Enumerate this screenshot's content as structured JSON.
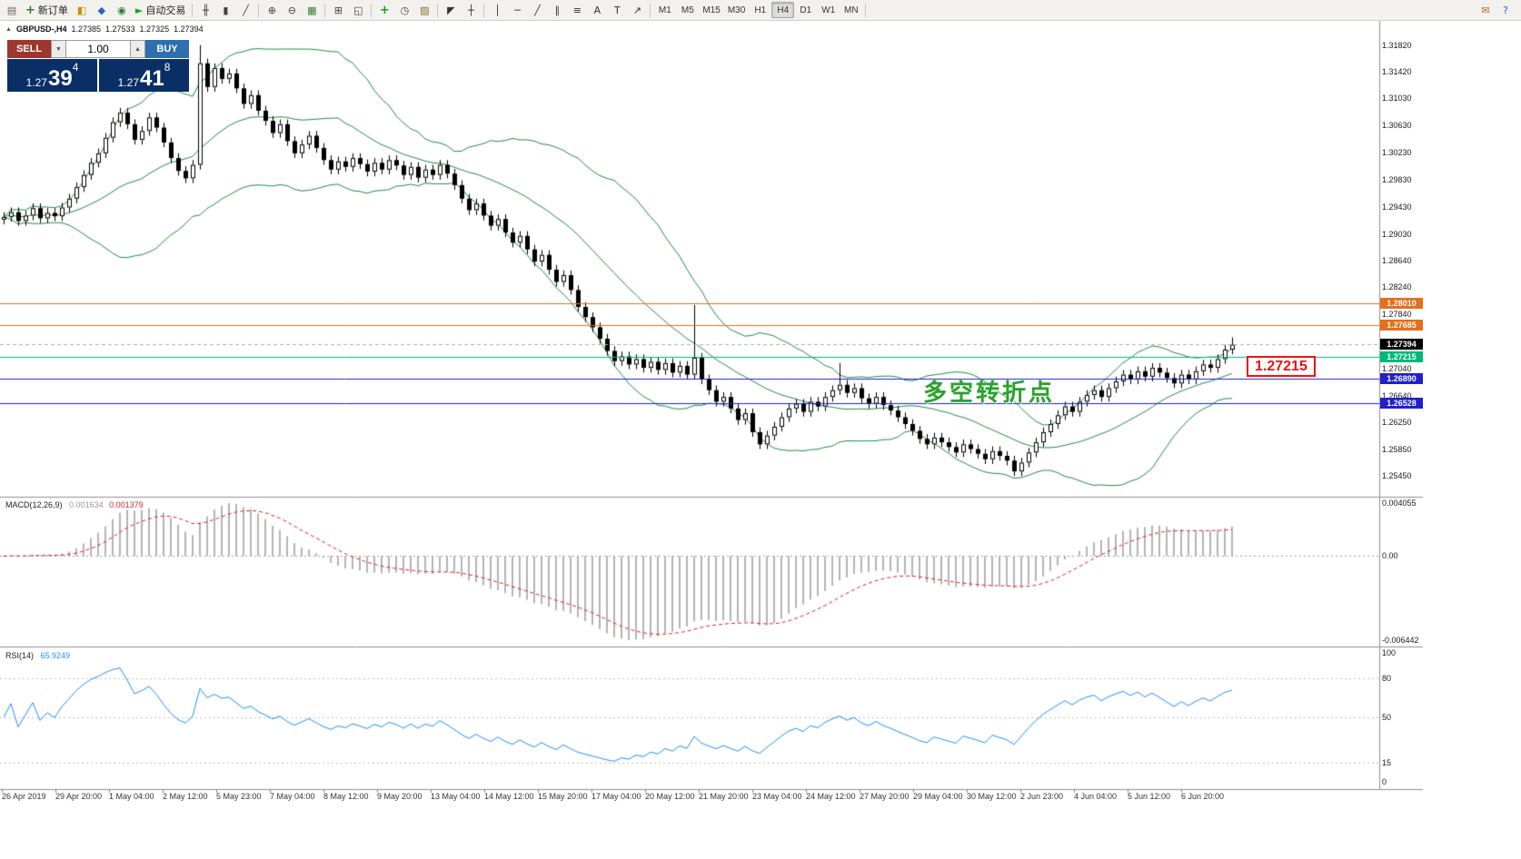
{
  "toolbar": {
    "left_items": [
      {
        "name": "new-chart-button",
        "icon": "chart-window-icon",
        "glyph": "▤",
        "color": "#666"
      },
      {
        "name": "new-order-button",
        "icon": "new-order-icon",
        "glyph": "+",
        "color": "#2e7d32",
        "label": "新订单"
      },
      {
        "name": "profiles-button",
        "icon": "profiles-icon",
        "glyph": "◧",
        "color": "#c79100"
      },
      {
        "name": "market-watch-button",
        "icon": "market-watch-icon",
        "glyph": "◆",
        "color": "#2a62b8"
      },
      {
        "name": "data-window-button",
        "icon": "data-window-icon",
        "glyph": "◉",
        "color": "#2e7d32"
      },
      {
        "name": "auto-trading-button",
        "icon": "play-icon",
        "glyph": "►",
        "color": "#19a119",
        "label": "自动交易"
      },
      {
        "sep": true
      },
      {
        "name": "bar-chart-button",
        "icon": "bar-chart-icon",
        "glyph": "╫",
        "color": "#444"
      },
      {
        "name": "candlestick-chart-button",
        "icon": "candlestick-chart-icon",
        "glyph": "▮",
        "color": "#444"
      },
      {
        "name": "line-chart-button",
        "icon": "line-chart-icon",
        "glyph": "╱",
        "color": "#444"
      },
      {
        "sep": true
      },
      {
        "name": "zoom-in-button",
        "icon": "zoom-in-icon",
        "glyph": "⊕",
        "color": "#444"
      },
      {
        "name": "zoom-out-button",
        "icon": "zoom-out-icon",
        "glyph": "⊖",
        "color": "#444"
      },
      {
        "name": "grid-button",
        "icon": "grid-icon",
        "glyph": "▦",
        "color": "#3a7a3a"
      },
      {
        "sep": true
      },
      {
        "name": "tile-windows-button",
        "icon": "tile-windows-icon",
        "glyph": "⊞",
        "color": "#444"
      },
      {
        "name": "cascade-windows-button",
        "icon": "cascade-windows-icon",
        "glyph": "◱",
        "color": "#444"
      },
      {
        "sep": true
      },
      {
        "name": "indicators-button",
        "icon": "add-indicator-icon",
        "glyph": "+",
        "color": "#18a018"
      },
      {
        "name": "periods-button",
        "icon": "clock-icon",
        "glyph": "◷",
        "color": "#444"
      },
      {
        "name": "templates-button",
        "icon": "templates-icon",
        "glyph": "▨",
        "color": "#8a6a3a"
      },
      {
        "sep": true
      },
      {
        "name": "cursor-button",
        "icon": "cursor-icon",
        "glyph": "◤",
        "color": "#333"
      },
      {
        "name": "crosshair-button",
        "icon": "crosshair-icon",
        "glyph": "┼",
        "color": "#333"
      },
      {
        "sep": true
      },
      {
        "name": "vertical-line-button",
        "icon": "vertical-line-icon",
        "glyph": "│",
        "color": "#333"
      },
      {
        "name": "horizontal-line-button",
        "icon": "horizontal-line-icon",
        "glyph": "─",
        "color": "#333"
      },
      {
        "name": "trendline-button",
        "icon": "trendline-icon",
        "glyph": "╱",
        "color": "#333"
      },
      {
        "name": "channel-button",
        "icon": "channel-icon",
        "glyph": "∥",
        "color": "#333"
      },
      {
        "name": "fibonacci-button",
        "icon": "fibonacci-icon",
        "glyph": "≡",
        "color": "#333"
      },
      {
        "name": "text-button",
        "icon": "text-icon",
        "glyph": "A",
        "color": "#333"
      },
      {
        "name": "text-label-button",
        "icon": "text-label-icon",
        "glyph": "T",
        "color": "#333"
      },
      {
        "name": "arrows-button",
        "icon": "arrow-object-icon",
        "glyph": "↗",
        "color": "#333"
      },
      {
        "sep": true
      }
    ],
    "timeframes": {
      "items": [
        "M1",
        "M5",
        "M15",
        "M30",
        "H1",
        "H4",
        "D1",
        "W1",
        "MN"
      ],
      "active": "H4"
    },
    "right_items": [
      {
        "name": "community-button",
        "icon": "mail-icon",
        "glyph": "✉",
        "color": "#b5651d"
      },
      {
        "name": "help-button",
        "icon": "help-icon",
        "glyph": "?",
        "color": "#2a62b8"
      }
    ]
  },
  "symbol_info": {
    "collapse_glyph": "▲",
    "symbol": "GBPUSD-,H4",
    "open": "1.27385",
    "high": "1.27533",
    "low": "1.27325",
    "close": "1.27394"
  },
  "trade_panel": {
    "sell": "SELL",
    "buy": "BUY",
    "volume": "1.00",
    "spin_down": "▼",
    "spin_up": "▲",
    "sell_price": {
      "base": "1.27",
      "big": "39",
      "sup": "4"
    },
    "buy_price": {
      "base": "1.27",
      "big": "41",
      "sup": "8"
    }
  },
  "annotation": {
    "text": "多空转折点"
  },
  "price_tag": {
    "text": "1.27215"
  },
  "levels": [
    {
      "label": "1.28010",
      "value": 1.2801,
      "color": "#e2701d",
      "dash": false
    },
    {
      "label": "1.27685",
      "value": 1.27685,
      "color": "#e2701d",
      "dash": false
    },
    {
      "label": "1.27394",
      "value": 1.27394,
      "color": "#000000",
      "line_color": "#b0b0b0",
      "dash": true
    },
    {
      "label": "1.27215",
      "value": 1.27215,
      "color": "#00b87a",
      "dash": false
    },
    {
      "label": "1.26890",
      "value": 1.2689,
      "color": "#2020cc",
      "dash": false
    },
    {
      "label": "1.26528",
      "value": 1.26528,
      "color": "#2020cc",
      "dash": false
    }
  ],
  "chart_data": {
    "type": "candlestick",
    "symbol": "GBPUSD-",
    "timeframe": "H4",
    "y_axis": {
      "min": 1.252,
      "max": 1.3215,
      "ticks": [
        "1.31820",
        "1.31420",
        "1.31030",
        "1.30630",
        "1.30230",
        "1.29830",
        "1.29430",
        "1.29030",
        "1.28640",
        "1.28240",
        "1.27840",
        "1.27040",
        "1.26640",
        "1.26250",
        "1.25850",
        "1.25450"
      ]
    },
    "x_axis": {
      "labels": [
        "26 Apr 2019",
        "29 Apr 20:00",
        "1 May 04:00",
        "2 May 12:00",
        "5 May 23:00",
        "7 May 04:00",
        "8 May 12:00",
        "9 May 20:00",
        "13 May 04:00",
        "14 May 12:00",
        "15 May 20:00",
        "17 May 04:00",
        "20 May 12:00",
        "21 May 20:00",
        "23 May 04:00",
        "24 May 12:00",
        "27 May 20:00",
        "29 May 04:00",
        "30 May 12:00",
        "2 Jun 23:00",
        "4 Jun 04:00",
        "5 Jun 12:00",
        "6 Jun 20:00"
      ]
    },
    "closes": [
      1.2928,
      1.2935,
      1.2922,
      1.293,
      1.2941,
      1.2926,
      1.2934,
      1.2929,
      1.2942,
      1.2955,
      1.2972,
      1.299,
      1.3008,
      1.3022,
      1.3045,
      1.3068,
      1.3082,
      1.3065,
      1.3042,
      1.3055,
      1.3075,
      1.306,
      1.3038,
      1.3015,
      1.2996,
      1.2985,
      1.3005,
      1.3155,
      1.312,
      1.3148,
      1.3132,
      1.314,
      1.3118,
      1.3095,
      1.3108,
      1.3085,
      1.307,
      1.3052,
      1.3065,
      1.304,
      1.3022,
      1.3035,
      1.3048,
      1.303,
      1.3012,
      1.2998,
      1.301,
      1.3002,
      1.3015,
      1.3006,
      1.2995,
      1.3008,
      1.2998,
      1.3012,
      1.3004,
      1.299,
      1.3002,
      1.2986,
      1.2998,
      1.299,
      1.3005,
      1.2992,
      1.2975,
      1.2955,
      1.2938,
      1.2948,
      1.293,
      1.2915,
      1.2925,
      1.2905,
      1.289,
      1.29,
      1.288,
      1.2862,
      1.2872,
      1.285,
      1.2832,
      1.2842,
      1.282,
      1.2795,
      1.278,
      1.2765,
      1.2748,
      1.273,
      1.2715,
      1.2722,
      1.271,
      1.2718,
      1.2705,
      1.2714,
      1.2702,
      1.2712,
      1.2698,
      1.2708,
      1.2695,
      1.272,
      1.2688,
      1.2672,
      1.2655,
      1.2662,
      1.2645,
      1.2628,
      1.2638,
      1.261,
      1.2592,
      1.2605,
      1.2618,
      1.2632,
      1.2645,
      1.2652,
      1.264,
      1.2655,
      1.2648,
      1.2662,
      1.2672,
      1.268,
      1.2668,
      1.2675,
      1.266,
      1.2652,
      1.2662,
      1.265,
      1.2642,
      1.2632,
      1.2622,
      1.2612,
      1.26,
      1.2592,
      1.2602,
      1.2595,
      1.2588,
      1.258,
      1.2592,
      1.2585,
      1.2578,
      1.257,
      1.2582,
      1.2575,
      1.2568,
      1.2552,
      1.2565,
      1.258,
      1.2595,
      1.261,
      1.2622,
      1.2635,
      1.2648,
      1.264,
      1.2655,
      1.2665,
      1.2672,
      1.2662,
      1.2675,
      1.2685,
      1.2695,
      1.2688,
      1.27,
      1.2692,
      1.2705,
      1.2698,
      1.269,
      1.2682,
      1.2695,
      1.2688,
      1.27,
      1.271,
      1.2705,
      1.2718,
      1.2732,
      1.27394
    ],
    "default_wick": 0.0007,
    "wicks": {
      "27": {
        "h": 1.3182
      },
      "95": {
        "h": 1.2798
      },
      "115": {
        "h": 1.2712
      },
      "139": {
        "l": 1.2545
      },
      "169": {
        "h": 1.275
      }
    },
    "candle_colors": {
      "up_fill": "#ffffff",
      "down_fill": "#000000",
      "outline": "#000000"
    },
    "indicators": {
      "bollinger": {
        "period": 20,
        "deviation": 2,
        "color": "#1f8f3f"
      },
      "macd": {
        "label": "MACD(12,26,9)",
        "macd_value": "0.001634",
        "signal_value": "0.001379",
        "scale_top": "0.004055",
        "scale_zero": "0.00",
        "scale_bottom": "-0.006442",
        "histogram_color": "#b4b4b4",
        "signal_color": "#e52222",
        "range": {
          "max": 0.004055,
          "min": -0.006442
        }
      },
      "rsi": {
        "label": "RSI(14)",
        "value": "65.9249",
        "color": "#1e90ff",
        "scale": [
          {
            "t": "100",
            "v": 100
          },
          {
            "t": "80",
            "v": 80
          },
          {
            "t": "50",
            "v": 50
          },
          {
            "t": "15",
            "v": 15
          },
          {
            "t": "0",
            "v": 0
          }
        ],
        "levels": [
          80,
          50,
          15
        ]
      }
    }
  }
}
